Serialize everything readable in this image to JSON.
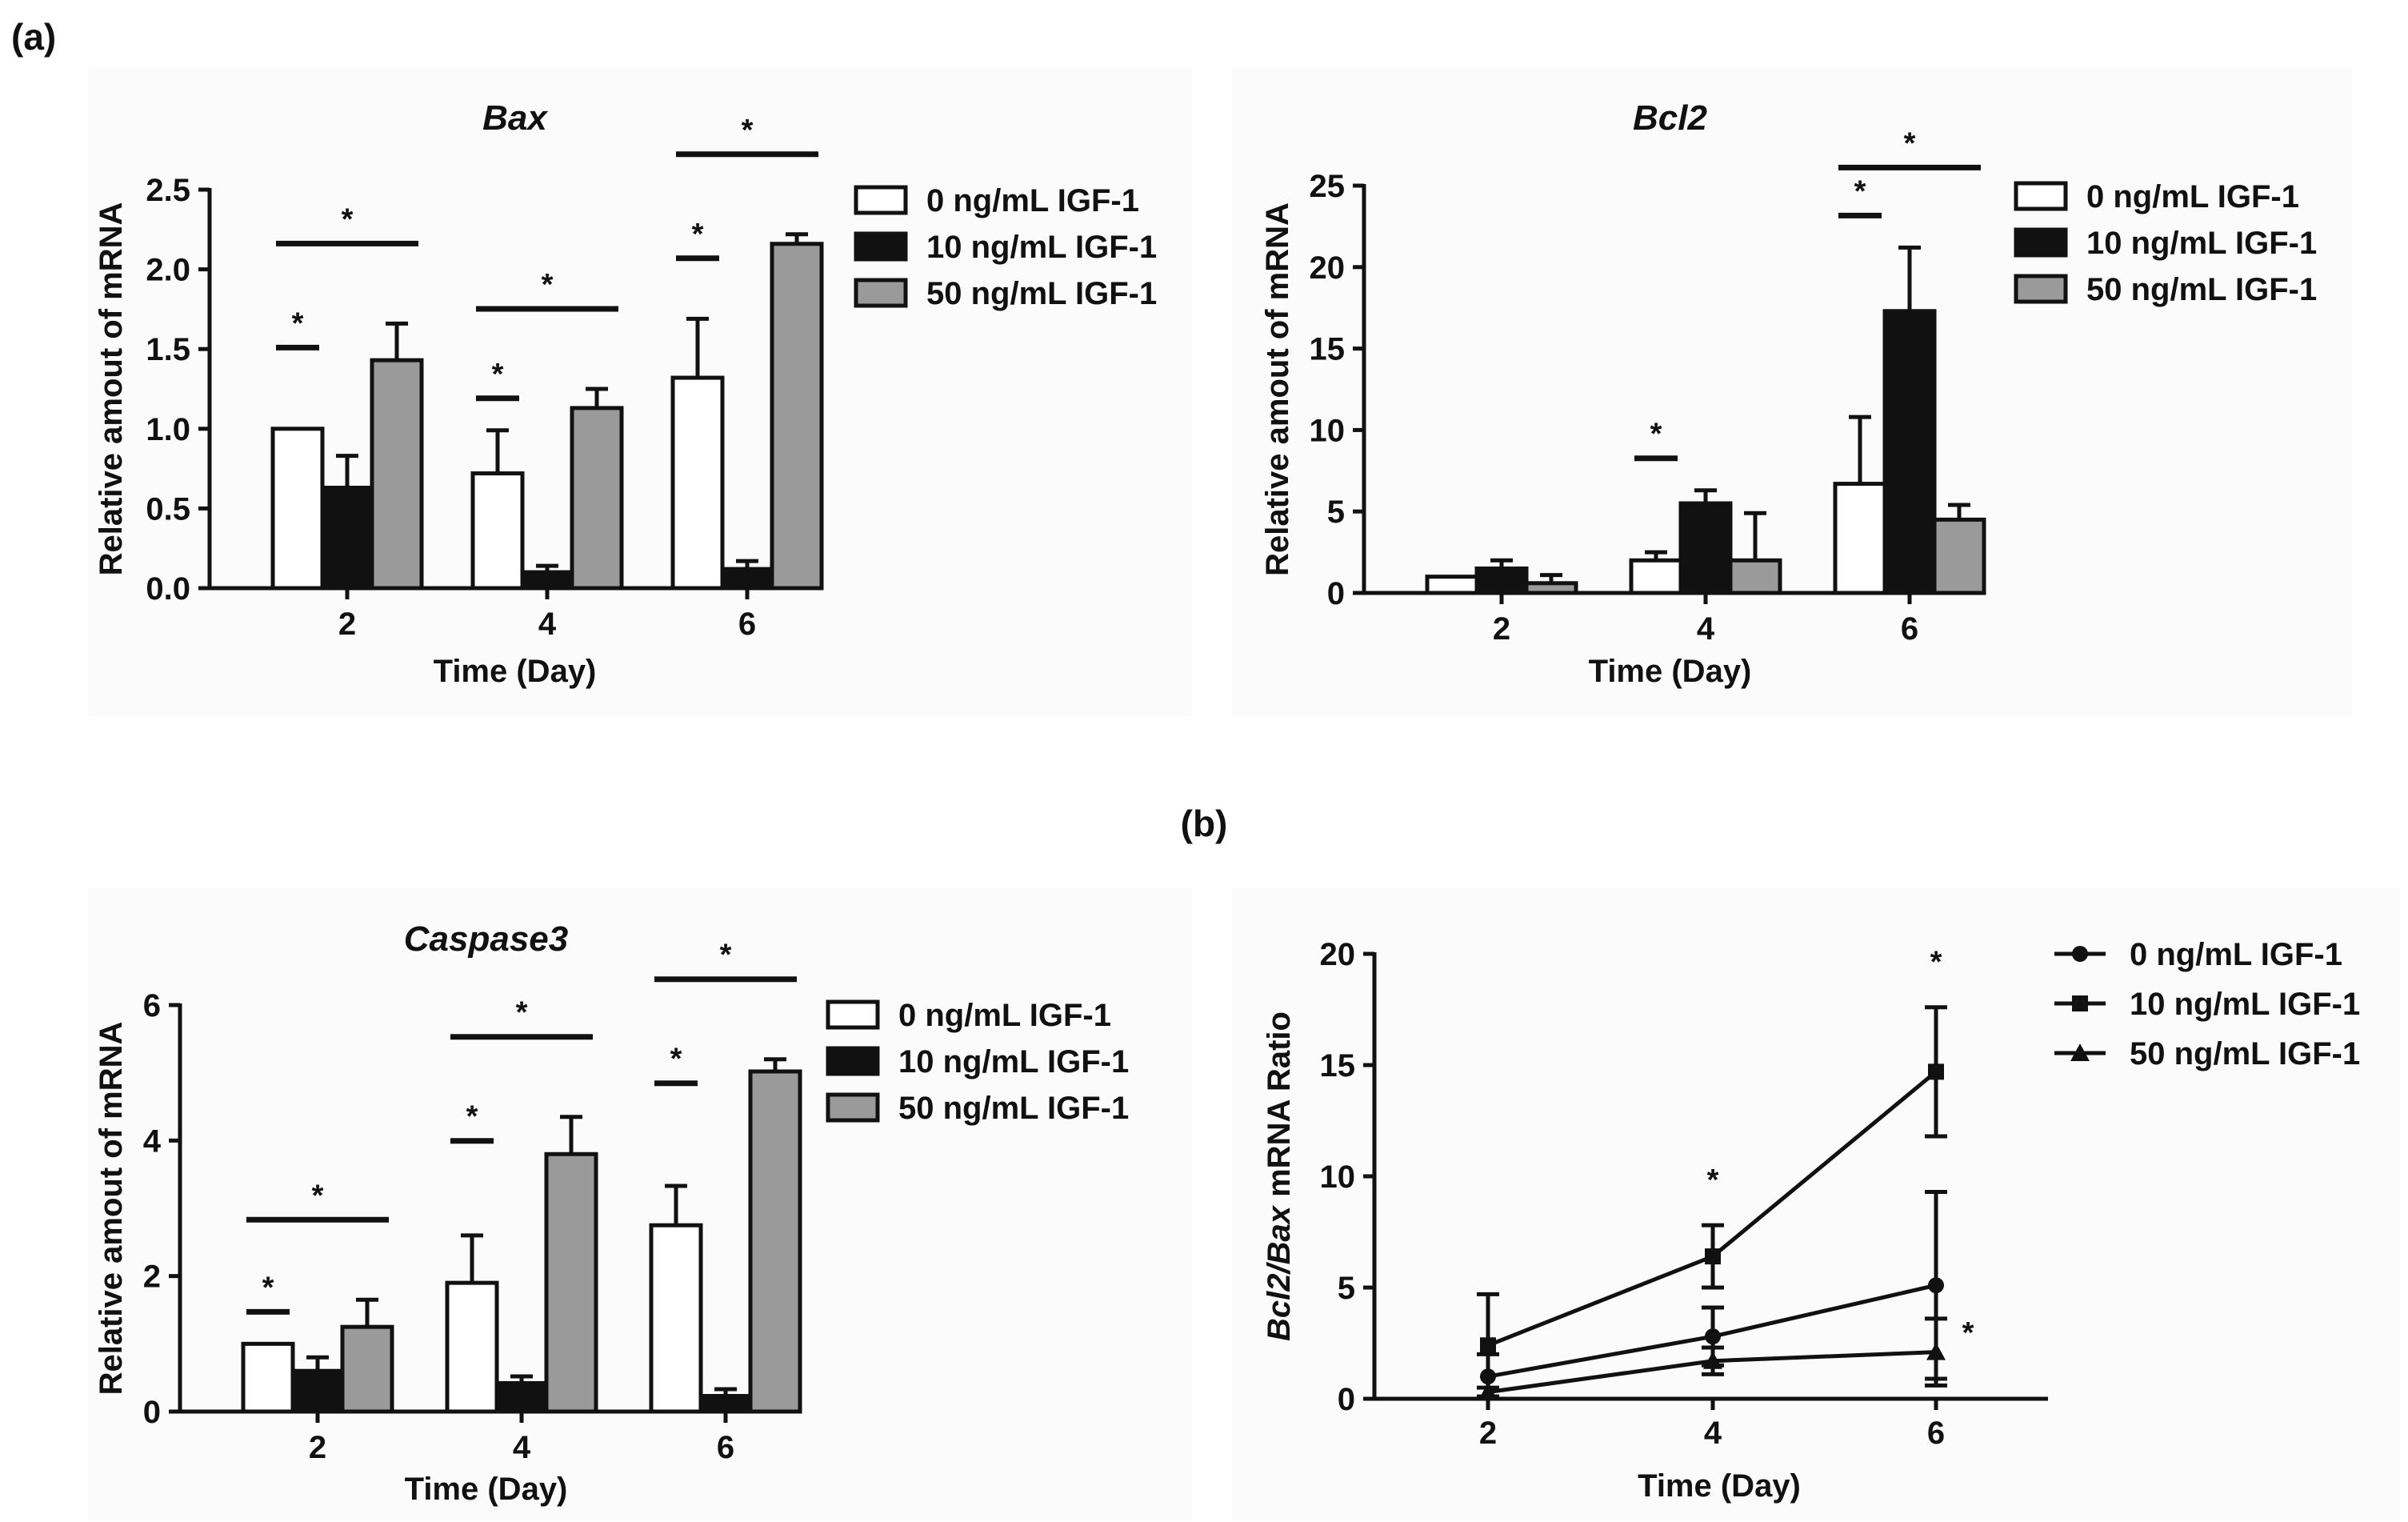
{
  "panel_labels": {
    "a": "(a)",
    "b": "(b)"
  },
  "legend_labels": [
    "0 ng/mL IGF-1",
    "10 ng/mL IGF-1",
    "50 ng/mL IGF-1"
  ],
  "series_colors": [
    "#ffffff",
    "#111111",
    "#9a9a9a"
  ],
  "chart_data": [
    {
      "id": "bax",
      "type": "bar",
      "title": "Bax",
      "title_style": "italic",
      "xlabel": "Time (Day)",
      "ylabel": "Relative amout of mRNA",
      "ylim": [
        0,
        2.5
      ],
      "yticks": [
        "0.0",
        "0.5",
        "1.0",
        "1.5",
        "2.0",
        "2.5"
      ],
      "categories": [
        "2",
        "4",
        "6"
      ],
      "legend_position": "right",
      "series": [
        {
          "name": "0 ng/mL IGF-1",
          "values": [
            1.0,
            0.72,
            1.32
          ],
          "errors": [
            0.0,
            0.27,
            0.37
          ]
        },
        {
          "name": "10 ng/mL IGF-1",
          "values": [
            0.63,
            0.1,
            0.12
          ],
          "errors": [
            0.2,
            0.04,
            0.05
          ]
        },
        {
          "name": "50 ng/mL IGF-1",
          "values": [
            1.43,
            1.13,
            2.16
          ],
          "errors": [
            0.23,
            0.12,
            0.06
          ]
        }
      ],
      "significance": [
        {
          "category": 0,
          "from": 0,
          "to": 1,
          "label": "*"
        },
        {
          "category": 0,
          "from": 0,
          "to": 2,
          "label": "*"
        },
        {
          "category": 1,
          "from": 0,
          "to": 1,
          "label": "*"
        },
        {
          "category": 1,
          "from": 0,
          "to": 2,
          "label": "*"
        },
        {
          "category": 2,
          "from": 0,
          "to": 1,
          "label": "*"
        },
        {
          "category": 2,
          "from": 0,
          "to": 2,
          "label": "*"
        }
      ]
    },
    {
      "id": "bcl2",
      "type": "bar",
      "title": "Bcl2",
      "title_style": "italic",
      "xlabel": "Time (Day)",
      "ylabel": "Relative amout of mRNA",
      "ylim": [
        0,
        25
      ],
      "yticks": [
        "0",
        "5",
        "10",
        "15",
        "20",
        "25"
      ],
      "categories": [
        "2",
        "4",
        "6"
      ],
      "legend_position": "right",
      "series": [
        {
          "name": "0 ng/mL IGF-1",
          "values": [
            1.0,
            2.0,
            6.7
          ],
          "errors": [
            0.0,
            0.5,
            4.1
          ]
        },
        {
          "name": "10 ng/mL IGF-1",
          "values": [
            1.5,
            5.5,
            17.3
          ],
          "errors": [
            0.5,
            0.8,
            3.9
          ]
        },
        {
          "name": "50 ng/mL IGF-1",
          "values": [
            0.6,
            2.0,
            4.5
          ],
          "errors": [
            0.5,
            2.9,
            0.9
          ]
        }
      ],
      "significance": [
        {
          "category": 1,
          "from": 0,
          "to": 1,
          "label": "*"
        },
        {
          "category": 2,
          "from": 0,
          "to": 1,
          "label": "*"
        },
        {
          "category": 2,
          "from": 0,
          "to": 2,
          "label": "*"
        }
      ]
    },
    {
      "id": "caspase3",
      "type": "bar",
      "title": "Caspase3",
      "title_style": "italic",
      "xlabel": "Time (Day)",
      "ylabel": "Relative amout of mRNA",
      "ylim": [
        0,
        6
      ],
      "yticks": [
        "0",
        "2",
        "4",
        "6"
      ],
      "categories": [
        "2",
        "4",
        "6"
      ],
      "legend_position": "right",
      "series": [
        {
          "name": "0 ng/mL IGF-1",
          "values": [
            1.0,
            1.9,
            2.75
          ],
          "errors": [
            0.0,
            0.7,
            0.58
          ]
        },
        {
          "name": "10 ng/mL IGF-1",
          "values": [
            0.6,
            0.42,
            0.23
          ],
          "errors": [
            0.2,
            0.1,
            0.1
          ]
        },
        {
          "name": "50 ng/mL IGF-1",
          "values": [
            1.25,
            3.8,
            5.02
          ],
          "errors": [
            0.4,
            0.55,
            0.18
          ]
        }
      ],
      "significance": [
        {
          "category": 0,
          "from": 0,
          "to": 1,
          "label": "*"
        },
        {
          "category": 0,
          "from": 0,
          "to": 2,
          "label": "*"
        },
        {
          "category": 1,
          "from": 0,
          "to": 1,
          "label": "*"
        },
        {
          "category": 1,
          "from": 0,
          "to": 2,
          "label": "*"
        },
        {
          "category": 2,
          "from": 0,
          "to": 1,
          "label": "*"
        },
        {
          "category": 2,
          "from": 0,
          "to": 2,
          "label": "*"
        }
      ]
    },
    {
      "id": "ratio",
      "type": "line",
      "title": "",
      "xlabel": "Time (Day)",
      "ylabel_italic": "Bcl2/Bax",
      "ylabel_rest": " mRNA Ratio",
      "ylim": [
        0,
        20
      ],
      "yticks": [
        "0",
        "5",
        "10",
        "15",
        "20"
      ],
      "x": [
        "2",
        "4",
        "6"
      ],
      "legend_position": "right",
      "series": [
        {
          "name": "0 ng/mL IGF-1",
          "marker": "circle",
          "values": [
            1.0,
            2.8,
            5.1
          ],
          "errors": [
            1.0,
            1.3,
            4.2
          ]
        },
        {
          "name": "10 ng/mL IGF-1",
          "marker": "square",
          "values": [
            2.4,
            6.4,
            14.7
          ],
          "errors": [
            2.3,
            1.4,
            2.9
          ]
        },
        {
          "name": "50 ng/mL IGF-1",
          "marker": "triangle",
          "values": [
            0.3,
            1.7,
            2.1
          ],
          "errors": [
            0.2,
            0.6,
            1.5
          ]
        }
      ],
      "annotations": [
        {
          "x_index": 1,
          "label": "*",
          "place": "above"
        },
        {
          "x_index": 2,
          "label": "*",
          "place": "above"
        },
        {
          "x_index": 2,
          "label": "*",
          "place": "right"
        }
      ]
    }
  ]
}
